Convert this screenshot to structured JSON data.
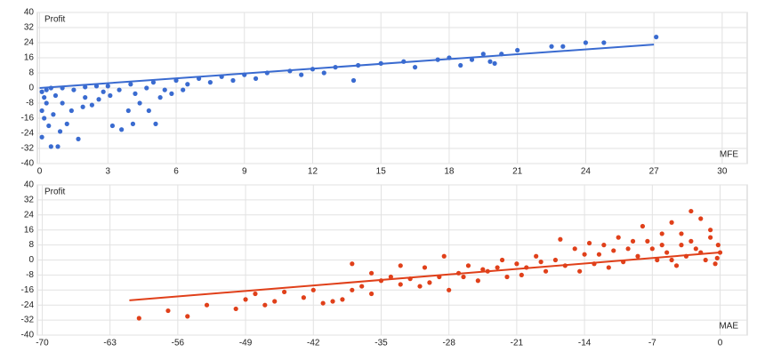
{
  "chart_data": [
    {
      "type": "scatter",
      "x_label": "MFE",
      "y_label": "Profit",
      "color": "#3a6bd0",
      "grid": true,
      "xlim": [
        -0.1,
        31.1
      ],
      "ylim": [
        -40,
        40
      ],
      "xticks": [
        0,
        3,
        6,
        9,
        12,
        15,
        18,
        21,
        24,
        27,
        30
      ],
      "yticks": [
        -40,
        -32,
        -24,
        -16,
        -8,
        0,
        8,
        16,
        24,
        32,
        40
      ],
      "x": [
        0.1,
        0.2,
        0.3,
        0.1,
        0.2,
        0.4,
        0.1,
        0.5,
        0.8,
        1.7,
        0.9,
        1.2,
        0.6,
        1.4,
        1.9,
        2.3,
        2.6,
        3.1,
        2.8,
        3.2,
        3.6,
        4.1,
        3.9,
        4.4,
        4.8,
        5.1,
        4.2,
        5.5,
        5.8,
        6.3,
        3.0,
        4.0,
        5.0,
        6.0,
        7.0,
        8.0,
        9.0,
        10,
        11,
        12,
        13,
        13.8,
        14,
        15,
        16,
        17.5,
        18,
        19,
        19.5,
        20,
        20.3,
        21,
        22.5,
        23,
        24,
        24.8,
        27.1,
        1,
        2,
        1.5,
        0.5,
        2.5,
        7.5,
        8.5,
        9.5,
        11.5,
        12.5,
        16.5,
        18.5,
        19.8,
        6.5,
        5.3,
        2,
        1,
        0.7,
        3.5,
        4.7,
        0.3
      ],
      "y": [
        -2,
        -5,
        -8,
        -12,
        -16,
        -20,
        -26,
        -31,
        -31,
        -27,
        -23,
        -19,
        -14,
        -12,
        -10,
        -9,
        -6,
        -4,
        -2,
        -20,
        -22,
        -19,
        -12,
        -8,
        -12,
        -19,
        -3,
        -1,
        -3,
        -1,
        1,
        2,
        3,
        4,
        5,
        6,
        7,
        8,
        9,
        10,
        11,
        4,
        12,
        13,
        14,
        15,
        16,
        15,
        18,
        13,
        18,
        20,
        22,
        22,
        24,
        24,
        27,
        0,
        0.5,
        -1,
        0,
        1,
        3,
        4,
        5,
        7,
        8,
        11,
        12,
        14,
        2,
        -5,
        -5,
        -8,
        -4,
        -1,
        0,
        -1
      ],
      "trendline": {
        "x": [
          0,
          27
        ],
        "y": [
          0,
          23
        ]
      }
    },
    {
      "type": "scatter",
      "x_label": "MAE",
      "y_label": "Profit",
      "color": "#e0401a",
      "grid": true,
      "xlim": [
        -70.5,
        2.8
      ],
      "ylim": [
        -40,
        40
      ],
      "xticks": [
        -70,
        -63,
        -56,
        -49,
        -42,
        -35,
        -28,
        -21,
        -14,
        -7,
        0
      ],
      "yticks": [
        -40,
        -32,
        -24,
        -16,
        -8,
        0,
        8,
        16,
        24,
        32,
        40
      ],
      "x": [
        -60,
        -57,
        -55,
        -53,
        -50,
        -49,
        -48,
        -47,
        -46,
        -45,
        -43,
        -42,
        -41,
        -40,
        -39,
        -38,
        -37,
        -36,
        -35,
        -34,
        -33,
        -32,
        -31,
        -30,
        -29,
        -28,
        -27,
        -26,
        -25,
        -24,
        -23,
        -22,
        -21,
        -20,
        -19,
        -18,
        -17,
        -16,
        -15,
        -14,
        -13,
        -12,
        -11,
        -10,
        -9,
        -8,
        -7,
        -6,
        -5,
        -4,
        -3,
        -2,
        -1,
        0,
        -0.5,
        -1.5,
        -2.5,
        -3.5,
        -4.5,
        -5.5,
        -6.5,
        -7.5,
        -8.5,
        -9.5,
        -10.5,
        -11.5,
        -12.5,
        -13.5,
        -14.5,
        -16.5,
        -18.5,
        -20.5,
        -22.5,
        -24.5,
        -26.5,
        -28.5,
        -30.5,
        -33,
        -36,
        -38,
        -1,
        -2,
        -3,
        -4,
        -5,
        -6,
        -0.2,
        -0.3
      ],
      "y": [
        -31,
        -27,
        -30,
        -24,
        -26,
        -21,
        -18,
        -24,
        -22,
        -17,
        -20,
        -16,
        -23,
        -22,
        -21,
        -16,
        -14,
        -18,
        -11,
        -9,
        -13,
        -10,
        -14,
        -12,
        -9,
        -16,
        -7,
        -3,
        -11,
        -6,
        -4,
        -9,
        -2,
        -4,
        2,
        -6,
        0,
        -3,
        6,
        3,
        -2,
        8,
        5,
        -1,
        10,
        18,
        6,
        14,
        20,
        8,
        26,
        22,
        12,
        4,
        -2,
        0,
        6,
        2,
        -3,
        4,
        0,
        10,
        2,
        6,
        12,
        -4,
        3,
        9,
        -6,
        11,
        -1,
        -8,
        0,
        -5,
        -9,
        2,
        -4,
        -3,
        -7,
        -2,
        16,
        4,
        10,
        14,
        0,
        8,
        8,
        1
      ],
      "trendline": {
        "x": [
          -61,
          0
        ],
        "y": [
          -21.5,
          4
        ]
      }
    }
  ]
}
